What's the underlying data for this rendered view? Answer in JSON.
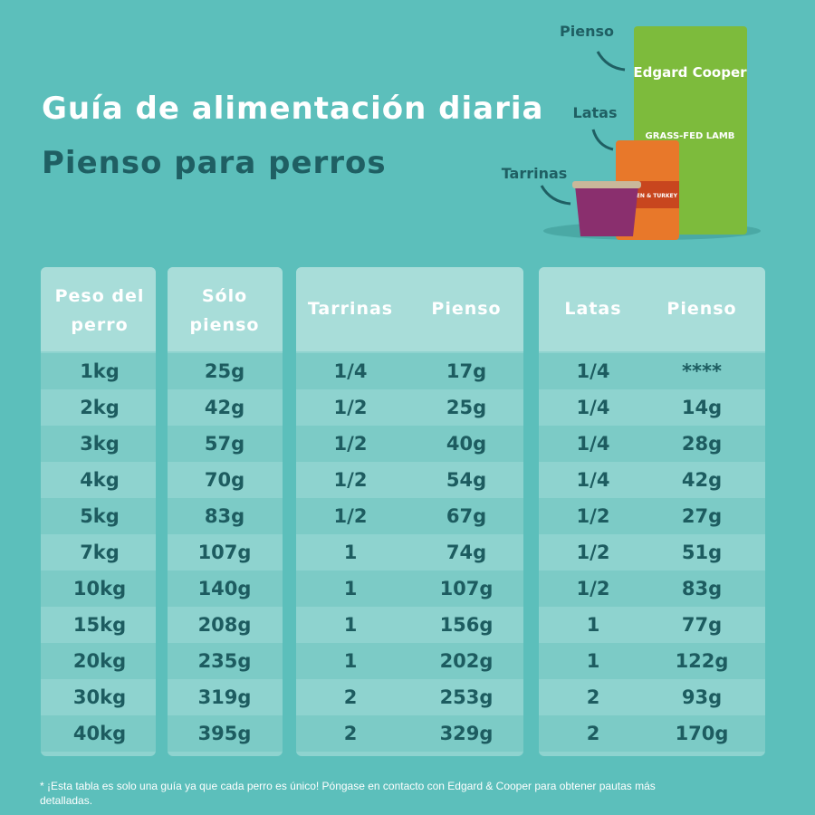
{
  "header": {
    "title": "Guía de alimentación diaria",
    "subtitle": "Pienso para perros"
  },
  "products": {
    "labels": [
      "Pienso",
      "Latas",
      "Tarrinas"
    ],
    "brand": "Edgard Cooper",
    "bag_text": "GRASS-FED LAMB",
    "can_text": "CHICKEN & TURKEY"
  },
  "table": {
    "headers": [
      "Peso del perro",
      "Sólo pienso",
      "Tarrinas",
      "Pienso",
      "Latas",
      "Pienso"
    ],
    "rows": [
      [
        "1kg",
        "25g",
        "1/4",
        "17g",
        "1/4",
        "****"
      ],
      [
        "2kg",
        "42g",
        "1/2",
        "25g",
        "1/4",
        "14g"
      ],
      [
        "3kg",
        "57g",
        "1/2",
        "40g",
        "1/4",
        "28g"
      ],
      [
        "4kg",
        "70g",
        "1/2",
        "54g",
        "1/4",
        "42g"
      ],
      [
        "5kg",
        "83g",
        "1/2",
        "67g",
        "1/2",
        "27g"
      ],
      [
        "7kg",
        "107g",
        "1",
        "74g",
        "1/2",
        "51g"
      ],
      [
        "10kg",
        "140g",
        "1",
        "107g",
        "1/2",
        "83g"
      ],
      [
        "15kg",
        "208g",
        "1",
        "156g",
        "1",
        "77g"
      ],
      [
        "20kg",
        "235g",
        "1",
        "202g",
        "1",
        "122g"
      ],
      [
        "30kg",
        "319g",
        "2",
        "253g",
        "2",
        "93g"
      ],
      [
        "40kg",
        "395g",
        "2",
        "329g",
        "2",
        "170g"
      ]
    ]
  },
  "footnote": "* ¡Esta tabla es solo una guía ya que cada perro es único! Póngase en contacto con Edgard & Cooper para obtener pautas más detalladas."
}
